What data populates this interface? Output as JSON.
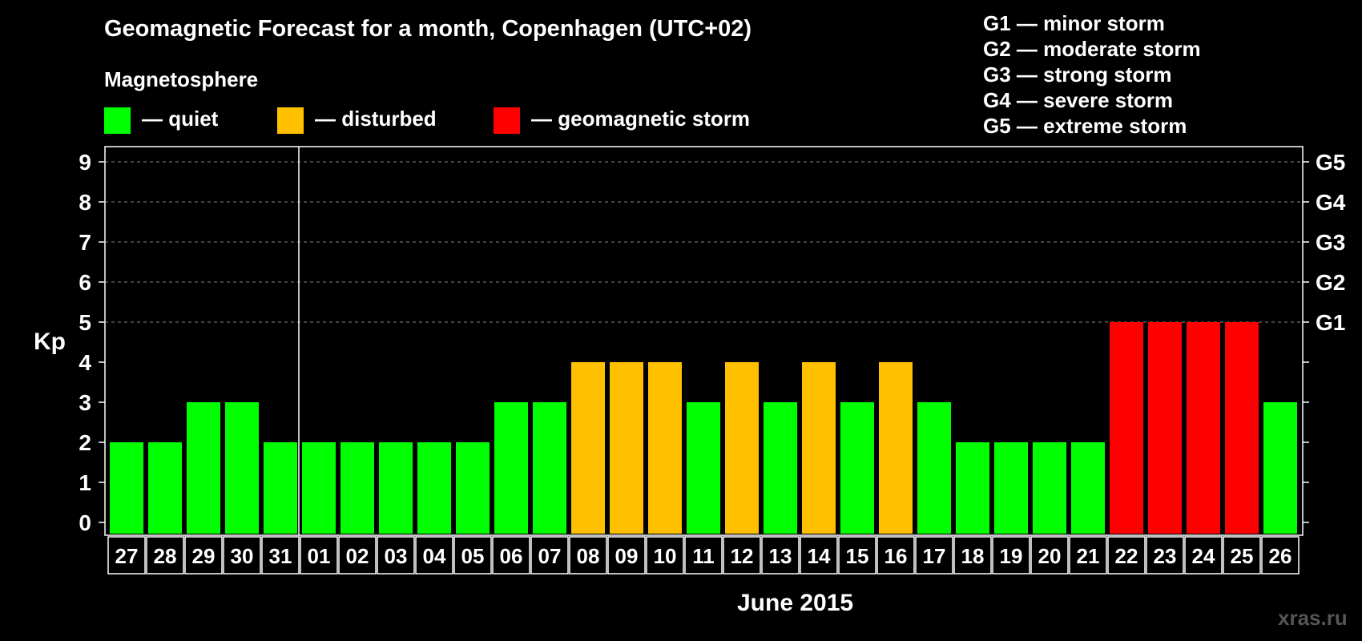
{
  "header": {
    "title": "Geomagnetic Forecast for a month, Copenhagen (UTC+02)",
    "subtitle": "Magnetosphere"
  },
  "legend": [
    {
      "label": "— quiet",
      "color": "#00ff00"
    },
    {
      "label": "— disturbed",
      "color": "#ffc000"
    },
    {
      "label": "— geomagnetic storm",
      "color": "#ff0000"
    }
  ],
  "storm_scale": [
    "G1 — minor storm",
    "G2 — moderate storm",
    "G3 — strong storm",
    "G4 — severe storm",
    "G5 — extreme storm"
  ],
  "watermark": "xras.ru",
  "chart_data": {
    "type": "bar",
    "ylabel": "Kp",
    "xlabel": "June 2015",
    "ylim": [
      0,
      9
    ],
    "yticks": [
      "0",
      "1",
      "2",
      "3",
      "4",
      "5",
      "6",
      "7",
      "8",
      "9"
    ],
    "right_ticks": [
      {
        "value": 5,
        "label": "G1"
      },
      {
        "value": 6,
        "label": "G2"
      },
      {
        "value": 7,
        "label": "G3"
      },
      {
        "value": 8,
        "label": "G4"
      },
      {
        "value": 9,
        "label": "G5"
      }
    ],
    "grid": "dashed horizontal at 5-9",
    "categories": [
      "27",
      "28",
      "29",
      "30",
      "31",
      "01",
      "02",
      "03",
      "04",
      "05",
      "06",
      "07",
      "08",
      "09",
      "10",
      "11",
      "12",
      "13",
      "14",
      "15",
      "16",
      "17",
      "18",
      "19",
      "20",
      "21",
      "22",
      "23",
      "24",
      "25",
      "26"
    ],
    "values": [
      2,
      2,
      3,
      3,
      2,
      2,
      2,
      2,
      2,
      2,
      3,
      3,
      4,
      4,
      4,
      3,
      4,
      3,
      4,
      3,
      4,
      3,
      2,
      2,
      2,
      2,
      5,
      5,
      5,
      5,
      3
    ],
    "levels": [
      "quiet",
      "quiet",
      "quiet",
      "quiet",
      "quiet",
      "quiet",
      "quiet",
      "quiet",
      "quiet",
      "quiet",
      "quiet",
      "quiet",
      "disturbed",
      "disturbed",
      "disturbed",
      "quiet",
      "disturbed",
      "quiet",
      "disturbed",
      "quiet",
      "disturbed",
      "quiet",
      "quiet",
      "quiet",
      "quiet",
      "quiet",
      "storm",
      "storm",
      "storm",
      "storm",
      "quiet"
    ],
    "colors": {
      "quiet": "#00ff00",
      "disturbed": "#ffc000",
      "storm": "#ff0000"
    },
    "month_divider_after": "31"
  }
}
